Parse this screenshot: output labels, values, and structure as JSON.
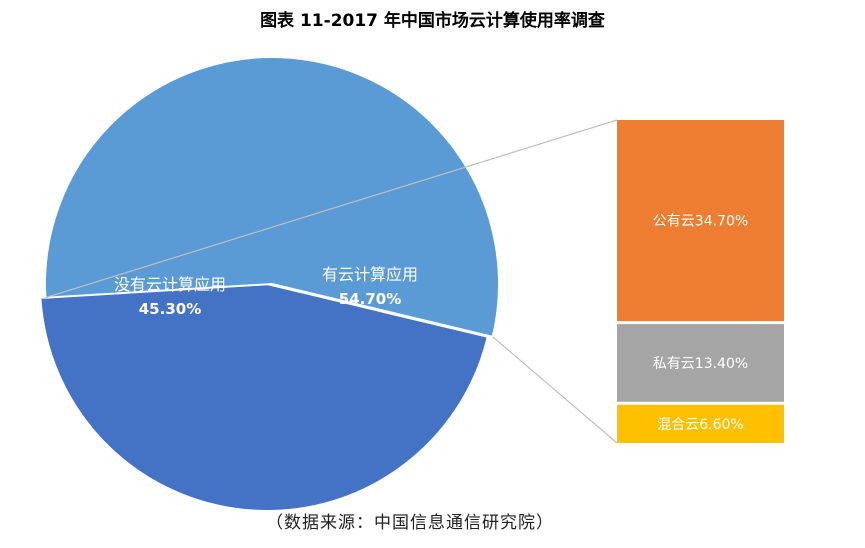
{
  "chart_data": {
    "type": "bar-of-pie",
    "title": "图表 11-2017 年中国市场云计算使用率调查",
    "source": "（数据来源：中国信息通信研究院）",
    "pie": [
      {
        "name": "有云计算应用",
        "label": "54.70%",
        "value": 54.7,
        "color": "#5b9bd5"
      },
      {
        "name": "没有云计算应用",
        "label": "45.30%",
        "value": 45.3,
        "color": "#4472c4"
      }
    ],
    "breakdown_of": "有云计算应用",
    "bar": [
      {
        "name": "公有云",
        "label": "34.70%",
        "value": 34.7,
        "color": "#ed7d31"
      },
      {
        "name": "私有云",
        "label": "13.40%",
        "value": 13.4,
        "color": "#a5a5a5"
      },
      {
        "name": "混合云",
        "label": "6.60%",
        "value": 6.6,
        "color": "#ffc000"
      }
    ],
    "label_color": "#ffffff"
  }
}
